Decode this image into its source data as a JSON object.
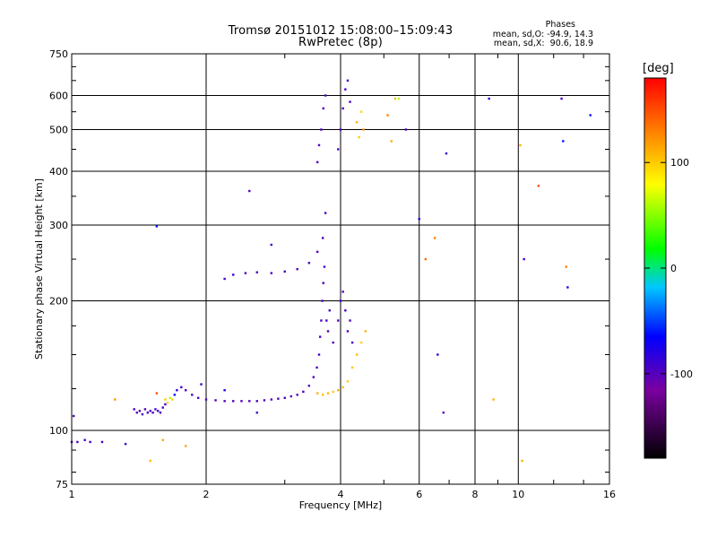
{
  "header": {
    "title_line1": "Tromsø 20151012 15:08:00–15:09:43",
    "title_line2": "RwPretec (8p)",
    "stats_title": "Phases",
    "stats_o": "mean, sd,O: -94.9, 14.3",
    "stats_x": "mean, sd,X:  90.6, 18.9"
  },
  "colorbar": {
    "unit_label": "[deg]",
    "range": [
      -180,
      180
    ],
    "tick_labels": [
      "100",
      "0",
      "-100"
    ],
    "tick_values": [
      100,
      0,
      -100
    ]
  },
  "chart_data": {
    "type": "scatter",
    "title": "Tromsø 20151012 15:08:00–15:09:43",
    "subtitle": "RwPretec (8p)",
    "xlabel": "Frequency [MHz]",
    "ylabel": "Stationary phase Virtual Height [km]",
    "x_scale": "log",
    "y_scale": "log",
    "xlim": [
      1,
      16
    ],
    "ylim": [
      75,
      750
    ],
    "grid": true,
    "x_ticks": [
      1,
      2,
      4,
      6,
      8,
      10,
      16
    ],
    "x_tick_labels": [
      "1",
      "2",
      "4",
      "6",
      "8",
      "10",
      "16"
    ],
    "y_ticks": [
      75,
      100,
      200,
      300,
      400,
      500,
      600,
      750
    ],
    "y_tick_labels": [
      "75",
      "100",
      "200",
      "300",
      "400",
      "500",
      "600",
      "750"
    ],
    "color_variable": "phase [deg]",
    "series": [
      {
        "points": [
          [
            1.0,
            94,
            -92
          ],
          [
            1.03,
            94,
            -95
          ],
          [
            1.07,
            95,
            -90
          ],
          [
            1.1,
            94,
            -97
          ],
          [
            1.17,
            94,
            -93
          ],
          [
            1.01,
            108,
            -100
          ],
          [
            1.32,
            93,
            -88
          ],
          [
            1.38,
            112,
            -95
          ],
          [
            1.4,
            110,
            -97
          ],
          [
            1.42,
            111,
            -96
          ],
          [
            1.44,
            109,
            -94
          ],
          [
            1.46,
            112,
            -98
          ],
          [
            1.48,
            110,
            -95
          ],
          [
            1.5,
            111,
            -96
          ],
          [
            1.52,
            110,
            -97
          ],
          [
            1.54,
            112,
            -95
          ],
          [
            1.56,
            111,
            -93
          ],
          [
            1.58,
            110,
            -96
          ],
          [
            1.6,
            113,
            -94
          ],
          [
            1.62,
            115,
            -92
          ],
          [
            1.55,
            122,
            150
          ],
          [
            1.62,
            118,
            100
          ],
          [
            1.64,
            116,
            95
          ],
          [
            1.66,
            119,
            60
          ],
          [
            1.68,
            118,
            100
          ],
          [
            1.7,
            121,
            -60
          ],
          [
            1.72,
            124,
            -85
          ],
          [
            1.76,
            126,
            -90
          ],
          [
            1.8,
            124,
            -95
          ],
          [
            1.86,
            121,
            -95
          ],
          [
            1.92,
            119,
            -97
          ],
          [
            2.0,
            118,
            -98
          ],
          [
            2.1,
            117.5,
            -100
          ],
          [
            2.2,
            117,
            -101
          ],
          [
            2.3,
            117,
            -100
          ],
          [
            2.4,
            117,
            -99
          ],
          [
            2.5,
            117,
            -100
          ],
          [
            2.6,
            117,
            -99
          ],
          [
            2.7,
            117.5,
            -100
          ],
          [
            2.8,
            118,
            -98
          ],
          [
            2.9,
            118.5,
            -99
          ],
          [
            3.0,
            119,
            -98
          ],
          [
            3.1,
            120,
            -99
          ],
          [
            3.2,
            121,
            -100
          ],
          [
            3.3,
            123,
            -98
          ],
          [
            3.4,
            127,
            -97
          ],
          [
            3.48,
            133,
            -98
          ],
          [
            3.54,
            140,
            -96
          ],
          [
            3.58,
            150,
            -95
          ],
          [
            3.6,
            165,
            -97
          ],
          [
            3.62,
            180,
            -96
          ],
          [
            3.64,
            200,
            -95
          ],
          [
            3.66,
            220,
            -97
          ],
          [
            3.68,
            240,
            -96
          ],
          [
            3.72,
            180,
            -95
          ],
          [
            3.75,
            170,
            -98
          ],
          [
            3.78,
            190,
            -94
          ],
          [
            3.85,
            160,
            -96
          ],
          [
            3.95,
            180,
            -97
          ],
          [
            4.0,
            200,
            -96
          ],
          [
            4.05,
            210,
            -98
          ],
          [
            4.1,
            190,
            -95
          ],
          [
            4.15,
            170,
            -96
          ],
          [
            4.2,
            180,
            -97
          ],
          [
            4.25,
            160,
            -95
          ],
          [
            3.55,
            122,
            110
          ],
          [
            3.65,
            121,
            105
          ],
          [
            3.75,
            122,
            108
          ],
          [
            3.85,
            123,
            100
          ],
          [
            3.95,
            124,
            110
          ],
          [
            4.05,
            126,
            104
          ],
          [
            4.15,
            130,
            98
          ],
          [
            4.25,
            140,
            102
          ],
          [
            4.35,
            150,
            105
          ],
          [
            4.45,
            160,
            95
          ],
          [
            4.55,
            170,
            110
          ],
          [
            2.2,
            225,
            -94
          ],
          [
            2.3,
            230,
            -90
          ],
          [
            2.45,
            232,
            -96
          ],
          [
            2.6,
            233,
            -95
          ],
          [
            2.8,
            232,
            -97
          ],
          [
            3.0,
            234,
            -96
          ],
          [
            3.2,
            237,
            -98
          ],
          [
            3.4,
            245,
            -95
          ],
          [
            3.55,
            260,
            -96
          ],
          [
            3.65,
            280,
            -97
          ],
          [
            3.7,
            320,
            -96
          ],
          [
            3.55,
            420,
            -95
          ],
          [
            3.58,
            460,
            -96
          ],
          [
            3.62,
            500,
            -94
          ],
          [
            3.66,
            560,
            -97
          ],
          [
            3.7,
            600,
            -95
          ],
          [
            3.95,
            450,
            -96
          ],
          [
            4.0,
            500,
            -97
          ],
          [
            4.05,
            560,
            -95
          ],
          [
            4.1,
            620,
            -96
          ],
          [
            4.15,
            650,
            -94
          ],
          [
            4.2,
            580,
            -98
          ],
          [
            4.35,
            520,
            110
          ],
          [
            4.4,
            480,
            100
          ],
          [
            4.45,
            550,
            95
          ],
          [
            4.5,
            500,
            120
          ],
          [
            5.1,
            540,
            130
          ],
          [
            5.2,
            470,
            110
          ],
          [
            5.3,
            590,
            105
          ],
          [
            5.4,
            590,
            60
          ],
          [
            5.6,
            500,
            -95
          ],
          [
            6.0,
            310,
            -80
          ],
          [
            6.2,
            250,
            140
          ],
          [
            6.5,
            280,
            130
          ],
          [
            6.6,
            150,
            -90
          ],
          [
            6.8,
            110,
            -100
          ],
          [
            6.9,
            440,
            -90
          ],
          [
            8.6,
            590,
            -80
          ],
          [
            8.8,
            118,
            110
          ],
          [
            10.1,
            460,
            110
          ],
          [
            10.2,
            85,
            110
          ],
          [
            10.3,
            250,
            -90
          ],
          [
            11.1,
            370,
            150
          ],
          [
            12.5,
            590,
            -95
          ],
          [
            12.6,
            470,
            -60
          ],
          [
            12.8,
            240,
            130
          ],
          [
            12.9,
            215,
            -80
          ],
          [
            14.5,
            540,
            -60
          ],
          [
            2.6,
            110,
            -90
          ],
          [
            2.8,
            270,
            -95
          ],
          [
            2.5,
            360,
            -100
          ],
          [
            1.55,
            298,
            -60
          ],
          [
            1.5,
            85,
            105
          ],
          [
            1.6,
            95,
            115
          ],
          [
            1.8,
            92,
            115
          ],
          [
            1.25,
            118,
            120
          ],
          [
            1.95,
            128,
            -90
          ],
          [
            2.2,
            124,
            -80
          ]
        ]
      }
    ]
  }
}
